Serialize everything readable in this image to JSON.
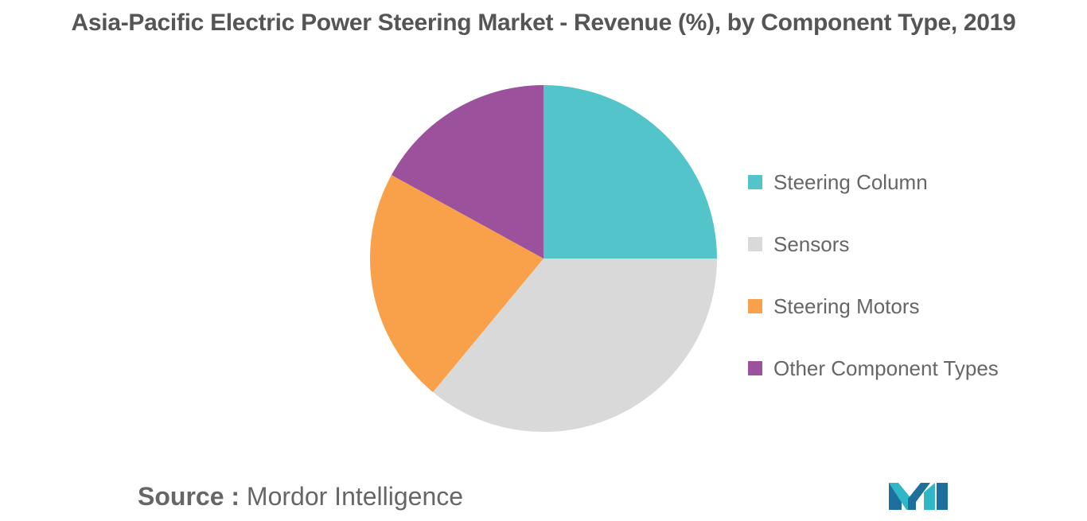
{
  "title": "Asia-Pacific Electric Power Steering Market - Revenue (%), by Component Type, 2019",
  "chart_data": {
    "type": "pie",
    "title": "Asia-Pacific Electric Power Steering Market - Revenue (%), by Component Type, 2019",
    "categories": [
      "Steering Column",
      "Sensors",
      "Steering Motors",
      "Other Component Types"
    ],
    "values": [
      25,
      36,
      22,
      17
    ],
    "colors": [
      "#53c4c9",
      "#d9d9d9",
      "#f9a04a",
      "#9c519d"
    ],
    "legend_position": "right"
  },
  "source": {
    "label": "Source :",
    "value": "Mordor Intelligence"
  },
  "logo_icon": "mordor-intelligence-logo"
}
